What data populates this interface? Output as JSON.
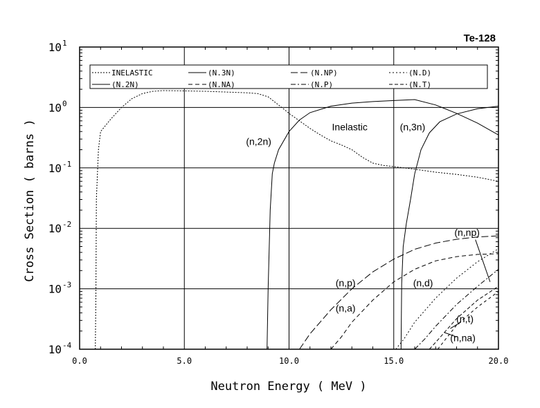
{
  "chart_data": {
    "type": "line",
    "title": "Te-128",
    "xlabel": "Neutron Energy ( MeV )",
    "ylabel": "Cross Section ( barns )",
    "xlim": [
      0,
      20
    ],
    "ylim": [
      0.0001,
      10
    ],
    "y_scale": "log",
    "grid": true,
    "x_ticks": [
      "0.0",
      "5.0",
      "10.0",
      "15.0",
      "20.0"
    ],
    "y_ticks": [
      {
        "base": "10",
        "exp": "1"
      },
      {
        "base": "10",
        "exp": "0"
      },
      {
        "base": "10",
        "exp": "-1"
      },
      {
        "base": "10",
        "exp": "-2"
      },
      {
        "base": "10",
        "exp": "-3"
      },
      {
        "base": "10",
        "exp": "-4"
      }
    ],
    "legend": {
      "placement": "top",
      "entries": [
        {
          "label": "INELASTIC",
          "series": "inelastic"
        },
        {
          "label": "(N.3N)",
          "series": "n3n"
        },
        {
          "label": "(N.NP)",
          "series": "nnp"
        },
        {
          "label": "(N.D)",
          "series": "nd"
        },
        {
          "label": "(N.2N)",
          "series": "n2n"
        },
        {
          "label": "(N.NA)",
          "series": "nna"
        },
        {
          "label": "(N.P)",
          "series": "np"
        },
        {
          "label": "(N.T)",
          "series": "nt"
        }
      ]
    },
    "series": [
      {
        "id": "inelastic",
        "dash": "2,2",
        "points": [
          [
            0.75,
            0.0001
          ],
          [
            0.78,
            0.001
          ],
          [
            0.8,
            0.03
          ],
          [
            0.9,
            0.2
          ],
          [
            1.0,
            0.4
          ],
          [
            1.5,
            0.65
          ],
          [
            2.0,
            1.0
          ],
          [
            2.5,
            1.4
          ],
          [
            3.0,
            1.7
          ],
          [
            3.5,
            1.85
          ],
          [
            4.0,
            1.9
          ],
          [
            5.0,
            1.88
          ],
          [
            6.0,
            1.85
          ],
          [
            7.0,
            1.8
          ],
          [
            8.0,
            1.75
          ],
          [
            8.5,
            1.7
          ],
          [
            9.0,
            1.5
          ],
          [
            9.5,
            1.1
          ],
          [
            10.0,
            0.8
          ],
          [
            10.5,
            0.6
          ],
          [
            11.0,
            0.45
          ],
          [
            11.5,
            0.35
          ],
          [
            12.0,
            0.28
          ],
          [
            12.5,
            0.24
          ],
          [
            13.0,
            0.2
          ],
          [
            13.5,
            0.15
          ],
          [
            14.0,
            0.12
          ],
          [
            14.5,
            0.11
          ],
          [
            15.0,
            0.105
          ],
          [
            16.0,
            0.095
          ],
          [
            17.0,
            0.085
          ],
          [
            18.0,
            0.078
          ],
          [
            19.0,
            0.07
          ],
          [
            20.0,
            0.06
          ]
        ]
      },
      {
        "id": "n2n",
        "dash": "",
        "points": [
          [
            8.95,
            0.0001
          ],
          [
            9.0,
            0.001
          ],
          [
            9.1,
            0.02
          ],
          [
            9.2,
            0.08
          ],
          [
            9.3,
            0.12
          ],
          [
            9.5,
            0.2
          ],
          [
            10.0,
            0.4
          ],
          [
            10.5,
            0.62
          ],
          [
            11.0,
            0.82
          ],
          [
            12.0,
            1.05
          ],
          [
            13.0,
            1.18
          ],
          [
            14.0,
            1.25
          ],
          [
            15.0,
            1.3
          ],
          [
            16.0,
            1.35
          ],
          [
            17.0,
            1.1
          ],
          [
            18.0,
            0.8
          ],
          [
            19.0,
            0.55
          ],
          [
            20.0,
            0.35
          ]
        ]
      },
      {
        "id": "n3n",
        "dash": "",
        "points": [
          [
            15.35,
            0.0001
          ],
          [
            15.38,
            0.0012
          ],
          [
            15.45,
            0.005
          ],
          [
            15.6,
            0.012
          ],
          [
            15.8,
            0.03
          ],
          [
            16.0,
            0.08
          ],
          [
            16.3,
            0.2
          ],
          [
            16.7,
            0.38
          ],
          [
            17.2,
            0.58
          ],
          [
            18.0,
            0.78
          ],
          [
            19.0,
            0.95
          ],
          [
            20.0,
            1.05
          ]
        ]
      },
      {
        "id": "nnp",
        "dash": "10,4",
        "points": [
          [
            10.5,
            0.0001
          ],
          [
            11.0,
            0.00018
          ],
          [
            12.0,
            0.00045
          ],
          [
            13.0,
            0.001
          ],
          [
            14.0,
            0.0019
          ],
          [
            15.0,
            0.0031
          ],
          [
            16.0,
            0.0045
          ],
          [
            17.0,
            0.0057
          ],
          [
            18.0,
            0.0066
          ],
          [
            19.0,
            0.0072
          ],
          [
            20.0,
            0.0075
          ]
        ]
      },
      {
        "id": "nna",
        "dash": "6,4",
        "points": [
          [
            12.0,
            0.0001
          ],
          [
            12.5,
            0.00016
          ],
          [
            13.0,
            0.00028
          ],
          [
            14.0,
            0.00065
          ],
          [
            15.0,
            0.0013
          ],
          [
            16.0,
            0.0021
          ],
          [
            17.0,
            0.0029
          ],
          [
            18.0,
            0.0034
          ],
          [
            19.0,
            0.0037
          ],
          [
            20.0,
            0.0038
          ]
        ]
      },
      {
        "id": "nd",
        "dash": "2,3",
        "points": [
          [
            15.1,
            0.0001
          ],
          [
            15.5,
            0.00015
          ],
          [
            16.0,
            0.00028
          ],
          [
            17.0,
            0.0007
          ],
          [
            18.0,
            0.0015
          ],
          [
            19.0,
            0.0028
          ],
          [
            20.0,
            0.0046
          ]
        ]
      },
      {
        "id": "np",
        "dash": "7,3,2,3",
        "points": [
          [
            16.0,
            0.0001
          ],
          [
            16.5,
            0.00015
          ],
          [
            17.0,
            0.00024
          ],
          [
            18.0,
            0.00055
          ],
          [
            19.0,
            0.0011
          ],
          [
            20.0,
            0.0021
          ]
        ]
      },
      {
        "id": "nt",
        "dash": "5,3",
        "points": [
          [
            16.7,
            0.0001
          ],
          [
            17.0,
            0.00013
          ],
          [
            18.0,
            0.00032
          ],
          [
            19.0,
            0.00065
          ],
          [
            20.0,
            0.0011
          ]
        ]
      },
      {
        "id": "nt2",
        "dash": "4,4",
        "points": [
          [
            17.1,
            0.0001
          ],
          [
            18.0,
            0.00025
          ],
          [
            19.0,
            0.0005
          ],
          [
            20.0,
            0.0009
          ]
        ]
      }
    ],
    "annotations": [
      {
        "id": "a-n2n",
        "text": "(n,2n)",
        "x": 8.55,
        "y": 0.24
      },
      {
        "id": "a-inel",
        "text": "Inelastic",
        "x": 12.9,
        "y": 0.42
      },
      {
        "id": "a-n3n",
        "text": "(n,3n)",
        "x": 15.9,
        "y": 0.42
      },
      {
        "id": "a-nnp",
        "text": "(n,np)",
        "x": 18.5,
        "y": 0.0075
      },
      {
        "id": "a-np",
        "text": "(n,p)",
        "x": 12.7,
        "y": 0.0011
      },
      {
        "id": "a-nd",
        "text": "(n,d)",
        "x": 16.4,
        "y": 0.0011
      },
      {
        "id": "a-na",
        "text": "(n,a)",
        "x": 12.7,
        "y": 0.00042
      },
      {
        "id": "a-nt",
        "text": "(n,t)",
        "x": 18.4,
        "y": 0.00028
      },
      {
        "id": "a-nna",
        "text": "(n,na)",
        "x": 18.3,
        "y": 0.000135
      }
    ]
  }
}
